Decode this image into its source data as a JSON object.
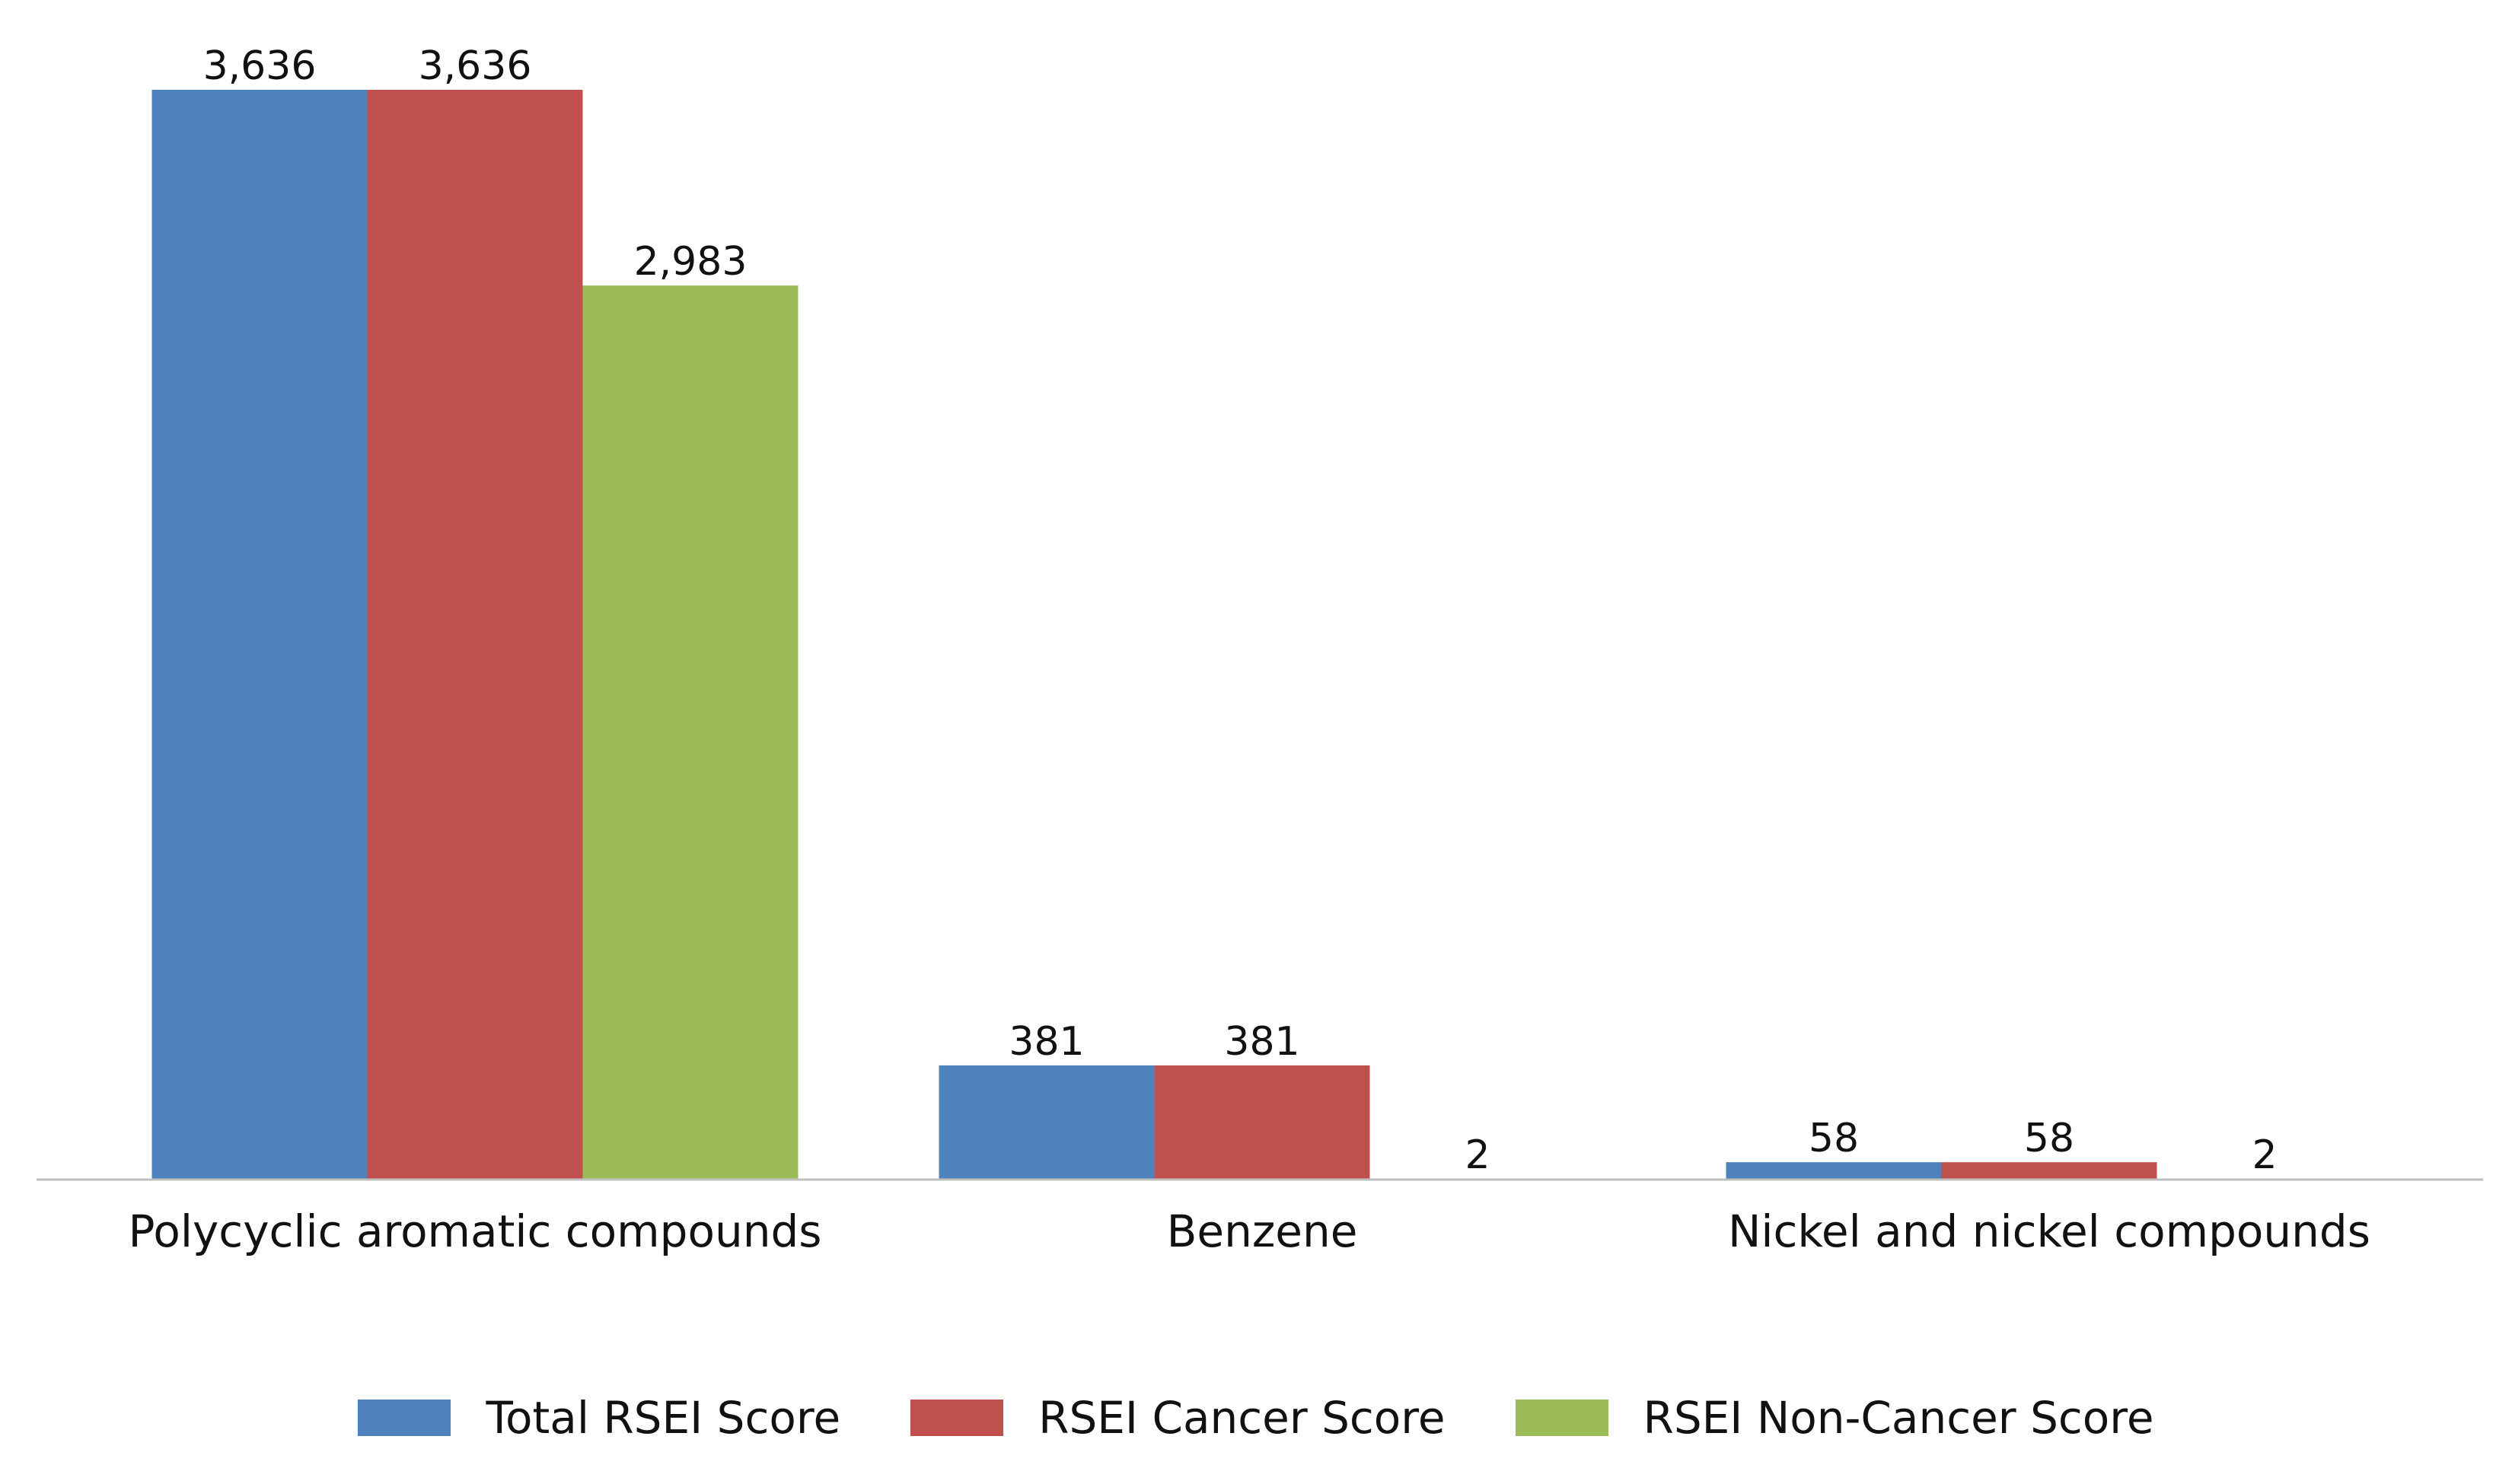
{
  "chart_data": {
    "type": "bar",
    "categories": [
      "Polycyclic aromatic compounds",
      "Benzene",
      "Nickel and nickel compounds"
    ],
    "series": [
      {
        "name": "Total RSEI Score",
        "values": [
          3636,
          381,
          58
        ],
        "labels": [
          "3,636",
          "381",
          "58"
        ],
        "color": "#4F81BD"
      },
      {
        "name": "RSEI Cancer Score",
        "values": [
          3636,
          381,
          58
        ],
        "labels": [
          "3,636",
          "381",
          "58"
        ],
        "color": "#C0504D"
      },
      {
        "name": "RSEI Non-Cancer Score",
        "values": [
          2983,
          2,
          2
        ],
        "labels": [
          "2,983",
          "2",
          "2"
        ],
        "color": "#9BBB59"
      }
    ],
    "title": "",
    "xlabel": "",
    "ylabel": "",
    "ylim": [
      0,
      3636
    ],
    "grid": false,
    "legend_position": "bottom",
    "axis_color": "#BFBFBF"
  }
}
